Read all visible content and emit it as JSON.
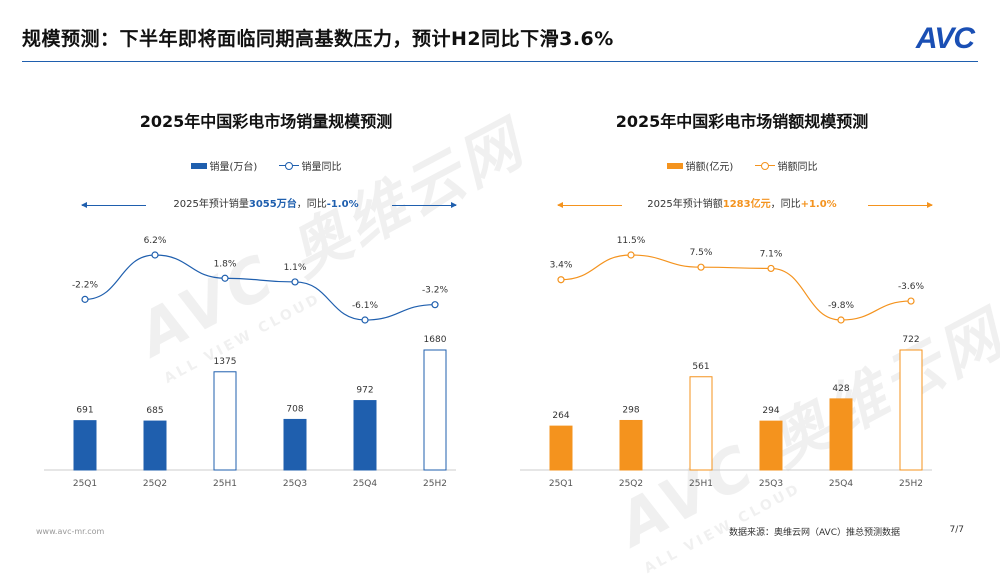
{
  "header": {
    "title": "规模预测：下半年即将面临同期高基数压力，预计H2同比下滑3.6%",
    "logo": "AVC"
  },
  "colors": {
    "blue": "#1f5fae",
    "orange": "#f4931e"
  },
  "watermark": {
    "brand": "AVC 奥维云网",
    "tagline": "ALL VIEW CLOUD"
  },
  "chart_data": [
    {
      "type": "bar+line",
      "title": "2025年中国彩电市场销量规模预测",
      "categories": [
        "25Q1",
        "25Q2",
        "25H1",
        "25Q3",
        "25Q4",
        "25H2"
      ],
      "series": [
        {
          "name": "销量(万台)",
          "kind": "bar",
          "values": [
            691,
            685,
            1375,
            708,
            972,
            1680
          ],
          "hollow": [
            false,
            false,
            true,
            false,
            false,
            true
          ]
        },
        {
          "name": "销量同比",
          "kind": "line",
          "values": [
            -2.2,
            6.2,
            1.8,
            1.1,
            -6.1,
            -3.2
          ],
          "labels": [
            "-2.2%",
            "6.2%",
            "1.8%",
            "1.1%",
            "-6.1%",
            "-3.2%"
          ]
        }
      ],
      "summary": {
        "prefix": "2025年预计销量",
        "value": "3055万台",
        "mid": "，同比",
        "growth": "-1.0%"
      },
      "color": "#1f5fae"
    },
    {
      "type": "bar+line",
      "title": "2025年中国彩电市场销额规模预测",
      "categories": [
        "25Q1",
        "25Q2",
        "25H1",
        "25Q3",
        "25Q4",
        "25H2"
      ],
      "series": [
        {
          "name": "销额(亿元)",
          "kind": "bar",
          "values": [
            264,
            298,
            561,
            294,
            428,
            722
          ],
          "hollow": [
            false,
            false,
            true,
            false,
            false,
            true
          ]
        },
        {
          "name": "销额同比",
          "kind": "line",
          "values": [
            3.4,
            11.5,
            7.5,
            7.1,
            -9.8,
            -3.6
          ],
          "labels": [
            "3.4%",
            "11.5%",
            "7.5%",
            "7.1%",
            "-9.8%",
            "-3.6%"
          ]
        }
      ],
      "summary": {
        "prefix": "2025年预计销额",
        "value": "1283亿元",
        "mid": "，同比",
        "growth": "+1.0%"
      },
      "color": "#f4931e"
    }
  ],
  "footer": {
    "website": "www.avc-mr.com",
    "source": "数据来源：奥维云网（AVC）推总预测数据",
    "page": "7/7"
  }
}
